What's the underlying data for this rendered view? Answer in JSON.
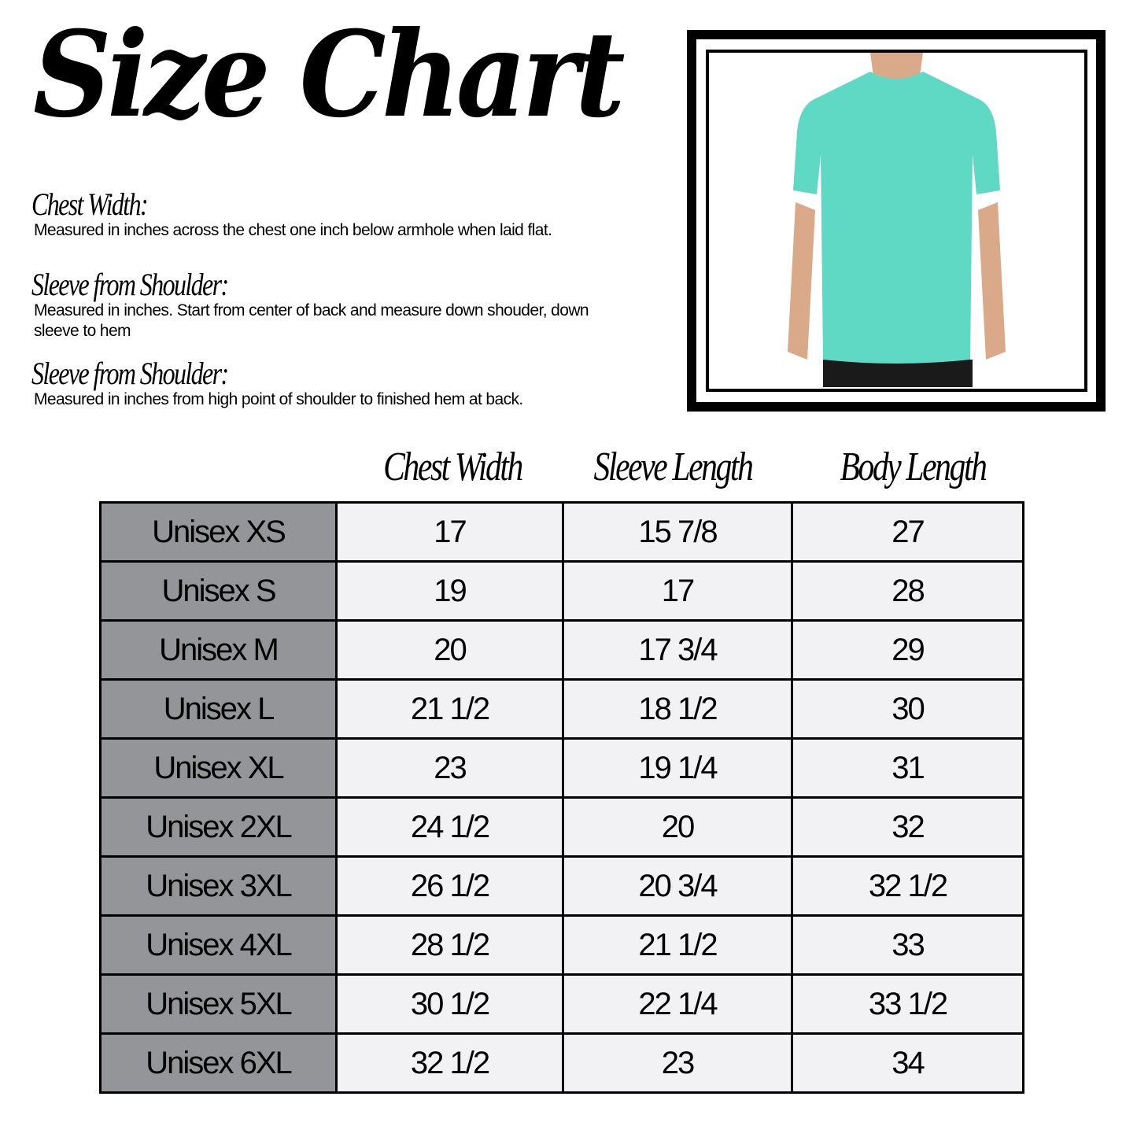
{
  "title": "Size Chart",
  "sections": [
    {
      "heading": "Chest Width:",
      "text": "Measured in inches across the chest one inch below armhole when laid flat."
    },
    {
      "heading": "Sleeve from Shoulder:",
      "text": "Measured in inches. Start from center of back and measure down shouder, down sleeve to hem"
    },
    {
      "heading": "Sleeve from Shoulder:",
      "text": "Measured in inches from high point of shoulder to finished hem at back."
    }
  ],
  "colors": {
    "size_cell": "#939598",
    "value_cell": "#f2f2f4",
    "shirt": "#5fd9c4"
  },
  "table": {
    "headers": [
      "Chest Width",
      "Sleeve Length",
      "Body Length"
    ],
    "rows": [
      [
        "Unisex XS",
        "17",
        "15 7/8",
        "27"
      ],
      [
        "Unisex S",
        "19",
        "17",
        "28"
      ],
      [
        "Unisex M",
        "20",
        "17 3/4",
        "29"
      ],
      [
        "Unisex L",
        "21 1/2",
        "18 1/2",
        "30"
      ],
      [
        "Unisex XL",
        "23",
        "19 1/4",
        "31"
      ],
      [
        "Unisex 2XL",
        "24 1/2",
        "20",
        "32"
      ],
      [
        "Unisex 3XL",
        "26 1/2",
        "20 3/4",
        "32 1/2"
      ],
      [
        "Unisex 4XL",
        "28 1/2",
        "21 1/2",
        "33"
      ],
      [
        "Unisex 5XL",
        "30 1/2",
        "22 1/4",
        "33 1/2"
      ],
      [
        "Unisex 6XL",
        "32 1/2",
        "23",
        "34"
      ]
    ]
  }
}
